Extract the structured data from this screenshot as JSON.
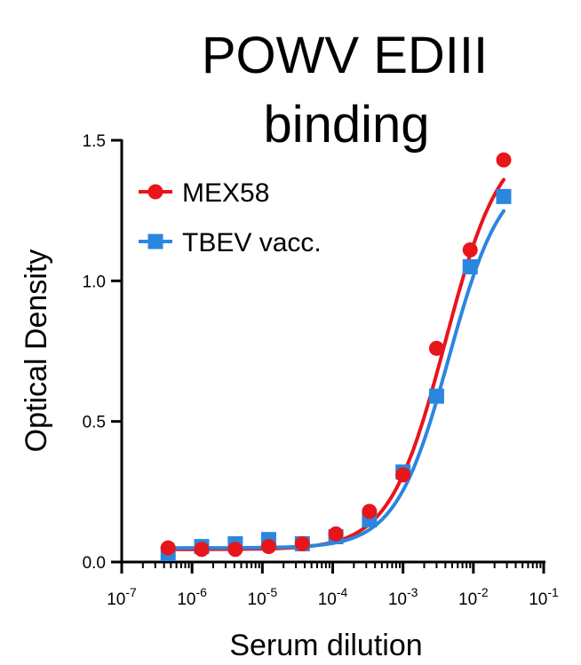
{
  "chart_data": {
    "type": "scatter",
    "title_lines": [
      "POWV EDIII",
      "binding"
    ],
    "xlabel": "Serum dilution",
    "ylabel": "Optical Density",
    "x_scale": "log",
    "xlim": [
      1e-07,
      0.1
    ],
    "ylim": [
      0,
      1.5
    ],
    "x_ticks": [
      {
        "value": 1e-07,
        "base": "10",
        "exp": "-7"
      },
      {
        "value": 1e-06,
        "base": "10",
        "exp": "-6"
      },
      {
        "value": 1e-05,
        "base": "10",
        "exp": "-5"
      },
      {
        "value": 0.0001,
        "base": "10",
        "exp": "-4"
      },
      {
        "value": 0.001,
        "base": "10",
        "exp": "-3"
      },
      {
        "value": 0.01,
        "base": "10",
        "exp": "-2"
      },
      {
        "value": 0.1,
        "base": "10",
        "exp": "-1"
      }
    ],
    "y_ticks": [
      {
        "value": 0,
        "label": "0.0"
      },
      {
        "value": 0.5,
        "label": "0.5"
      },
      {
        "value": 1.0,
        "label": "1.0"
      },
      {
        "value": 1.5,
        "label": "1.5"
      }
    ],
    "grid": false,
    "legend_position": "top-left",
    "series": [
      {
        "name": "MEX58",
        "color": "#e8151b",
        "marker": "circle",
        "x": [
          4.57e-07,
          1.37e-06,
          4.12e-06,
          1.23e-05,
          3.7e-05,
          0.000111,
          0.000333,
          0.001,
          0.003,
          0.009,
          0.027
        ],
        "y": [
          0.05,
          0.045,
          0.045,
          0.055,
          0.065,
          0.1,
          0.18,
          0.31,
          0.76,
          1.11,
          1.43
        ],
        "fit": {
          "bottom": 0.045,
          "top": 1.52,
          "logEC50": -2.4,
          "hill": 1.1
        }
      },
      {
        "name": "TBEV vacc.",
        "color": "#2b86e0",
        "marker": "square",
        "x": [
          4.57e-07,
          1.37e-06,
          4.12e-06,
          1.23e-05,
          3.7e-05,
          0.000111,
          0.000333,
          0.001,
          0.003,
          0.009,
          0.027
        ],
        "y": [
          0.03,
          0.055,
          0.065,
          0.08,
          0.065,
          0.09,
          0.15,
          0.32,
          0.59,
          1.05,
          1.3
        ],
        "fit": {
          "bottom": 0.05,
          "top": 1.4,
          "logEC50": -2.35,
          "hill": 1.15
        }
      }
    ]
  }
}
